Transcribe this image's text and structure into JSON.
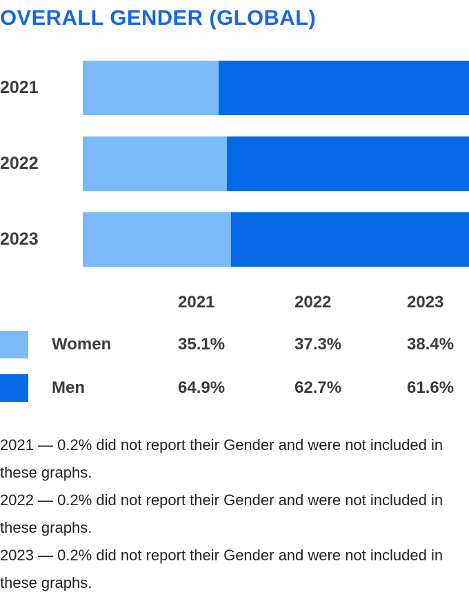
{
  "title": "OVERALL GENDER (GLOBAL)",
  "colors": {
    "title_blue": "#1766e2",
    "women_light_blue": "#7abaf8",
    "men_dark_blue": "#0768e6",
    "label_gray": "#3c3c3c",
    "footnote_black": "#1f1f1f"
  },
  "chart_data": {
    "type": "bar",
    "orientation": "horizontal",
    "stacked": true,
    "title": "OVERALL GENDER (GLOBAL)",
    "categories": [
      "2021",
      "2022",
      "2023"
    ],
    "series": [
      {
        "name": "Women",
        "color": "#7abaf8",
        "values": [
          35.1,
          37.3,
          38.4
        ]
      },
      {
        "name": "Men",
        "color": "#0768e6",
        "values": [
          64.9,
          62.7,
          61.6
        ]
      }
    ],
    "unit": "%",
    "xlim": [
      0,
      100
    ],
    "grid": false,
    "legend_position": "table-below"
  },
  "table": {
    "col_headers": [
      "2021",
      "2022",
      "2023"
    ],
    "rows": [
      {
        "label": "Women",
        "swatch_color": "#7abaf8",
        "values": [
          "35.1%",
          "37.3%",
          "38.4%"
        ]
      },
      {
        "label": "Men",
        "swatch_color": "#0768e6",
        "values": [
          "64.9%",
          "62.7%",
          "61.6%"
        ]
      }
    ]
  },
  "footnotes": [
    "2021 — 0.2% did not report their Gender and were not included in these graphs.",
    "2022 — 0.2% did not report their Gender and were not included in these graphs.",
    "2023 — 0.2% did not report their Gender and were not included in these graphs."
  ]
}
